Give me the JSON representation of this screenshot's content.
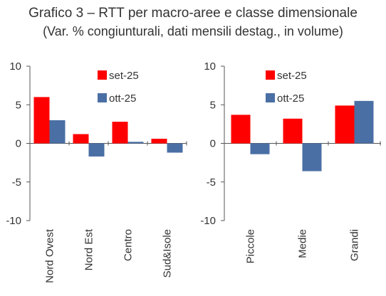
{
  "title": "Grafico 3 – RTT per macro-aree e classe dimensionale",
  "subtitle": "(Var. % congiunturali, dati mensili destag., in volume)",
  "colors": {
    "set": "#ff0000",
    "ott": "#4a6fa5"
  },
  "chart_data": [
    {
      "type": "bar",
      "categories": [
        "Nord Ovest",
        "Nord Est",
        "Centro",
        "Sud&Isole"
      ],
      "series": [
        {
          "name": "set-25",
          "values": [
            6.0,
            1.2,
            2.8,
            0.6
          ]
        },
        {
          "name": "ott-25",
          "values": [
            3.0,
            -1.7,
            0.2,
            -1.2
          ]
        }
      ],
      "ylim": [
        -10,
        10
      ],
      "yticks": [
        "10",
        "5",
        "0",
        "-5",
        "-10"
      ],
      "legend": "top-right",
      "grid": false
    },
    {
      "type": "bar",
      "categories": [
        "Piccole",
        "Medie",
        "Grandi"
      ],
      "series": [
        {
          "name": "set-25",
          "values": [
            3.7,
            3.2,
            4.9
          ]
        },
        {
          "name": "ott-25",
          "values": [
            -1.4,
            -3.6,
            5.5
          ]
        }
      ],
      "ylim": [
        -10,
        10
      ],
      "yticks": [
        "10",
        "5",
        "0",
        "-5",
        "-10"
      ],
      "legend": "top-right",
      "grid": false
    }
  ]
}
